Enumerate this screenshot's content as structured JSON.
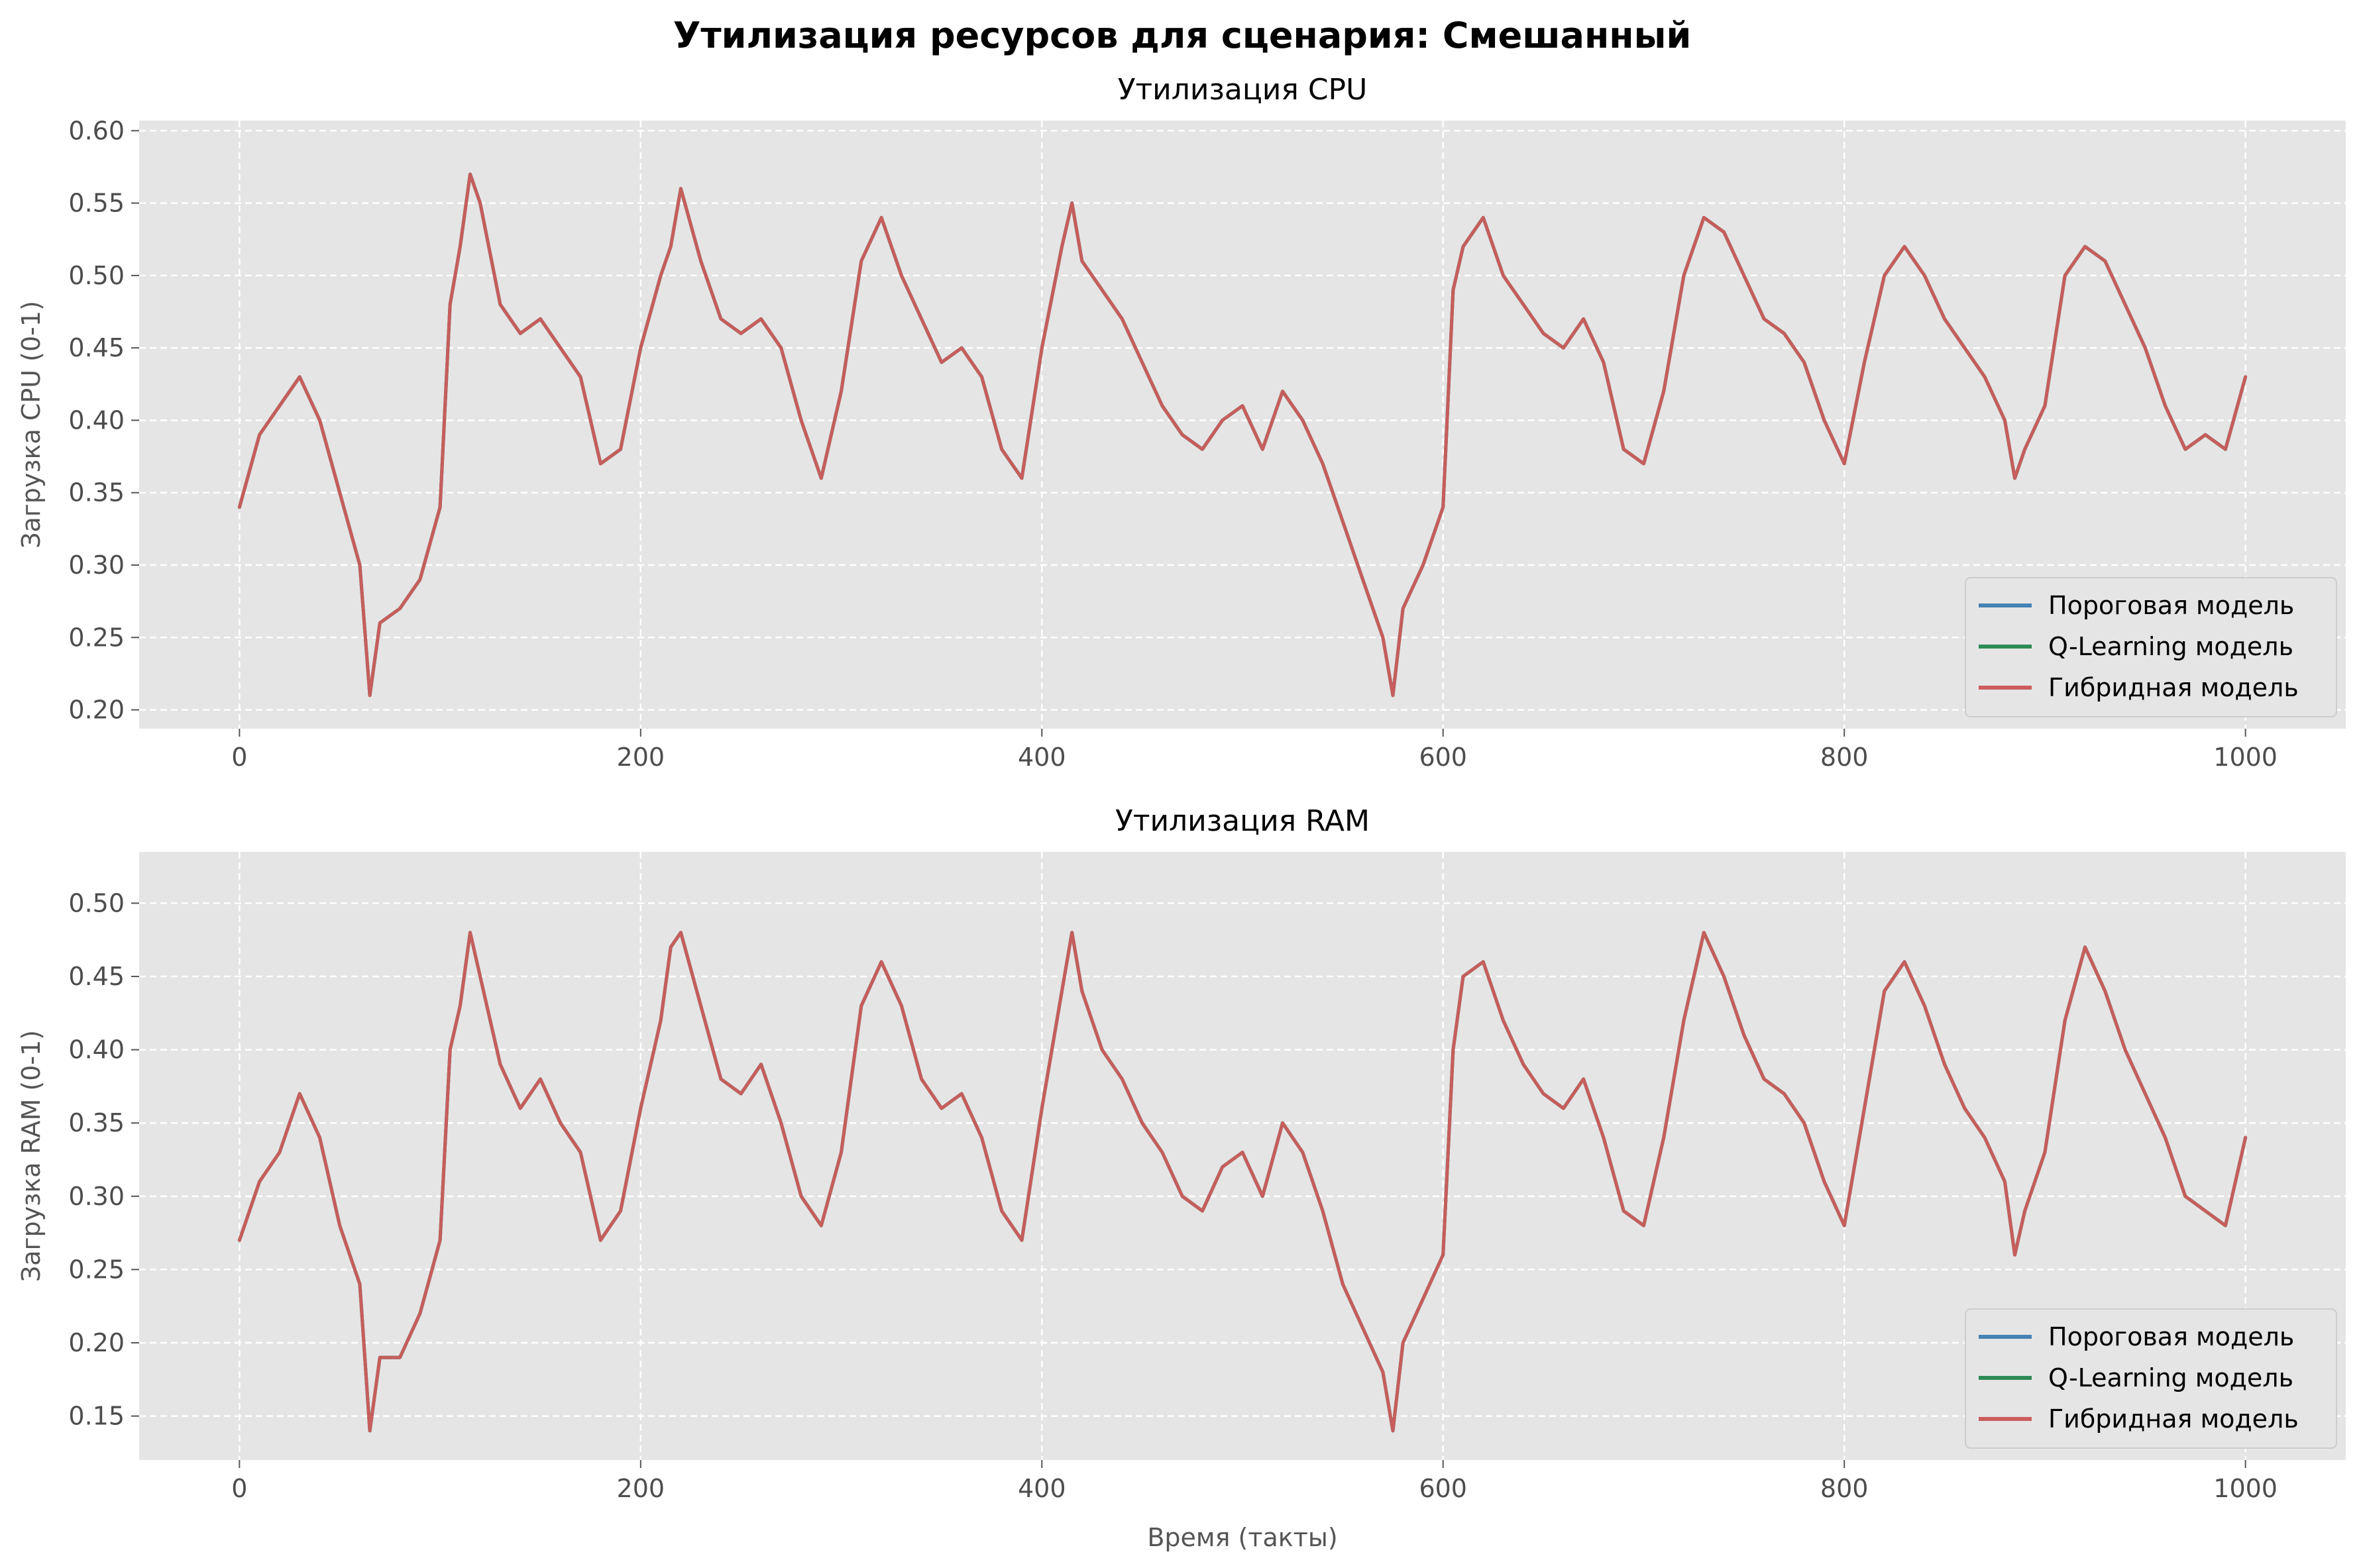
{
  "suptitle": "Утилизация ресурсов для сценария: Смешанный",
  "colors": {
    "background": "#e5e5e5",
    "grid": "#ffffff",
    "threshold": "#4682b4",
    "qlearning": "#2e8b57",
    "hybrid": "#cd5c5c"
  },
  "chart_data": [
    {
      "type": "line",
      "title": "Утилизация CPU",
      "xlabel": "",
      "ylabel": "Загрузка CPU (0-1)",
      "xlim": [
        -50,
        1050
      ],
      "ylim": [
        0.187,
        0.607
      ],
      "xticks": [
        0,
        200,
        400,
        600,
        800,
        1000
      ],
      "xtick_labels": [
        "0",
        "200",
        "400",
        "600",
        "800",
        "1000"
      ],
      "yticks": [
        0.2,
        0.25,
        0.3,
        0.35,
        0.4,
        0.45,
        0.5,
        0.55,
        0.6
      ],
      "ytick_labels": [
        "0.20",
        "0.25",
        "0.30",
        "0.35",
        "0.40",
        "0.45",
        "0.50",
        "0.55",
        "0.60"
      ],
      "grid": true,
      "legend_position": "lower-right",
      "legend": [
        "Пороговая модель",
        "Q-Learning модель",
        "Гибридная модель"
      ],
      "series_colors": [
        "#4682b4",
        "#2e8b57",
        "#cd5c5c"
      ],
      "x": [
        0,
        10,
        20,
        30,
        40,
        50,
        60,
        65,
        70,
        80,
        90,
        100,
        105,
        110,
        115,
        120,
        130,
        140,
        150,
        160,
        170,
        180,
        190,
        200,
        210,
        215,
        220,
        230,
        240,
        250,
        260,
        270,
        280,
        290,
        300,
        310,
        320,
        330,
        340,
        350,
        360,
        370,
        380,
        390,
        400,
        410,
        415,
        420,
        430,
        440,
        450,
        460,
        470,
        480,
        490,
        500,
        510,
        520,
        530,
        540,
        550,
        560,
        570,
        575,
        580,
        590,
        600,
        605,
        610,
        620,
        630,
        640,
        650,
        660,
        670,
        680,
        690,
        700,
        710,
        720,
        730,
        740,
        750,
        760,
        770,
        780,
        790,
        800,
        810,
        820,
        830,
        840,
        850,
        860,
        870,
        880,
        885,
        890,
        900,
        910,
        920,
        930,
        940,
        950,
        960,
        970,
        980,
        990,
        1000
      ],
      "series": [
        {
          "name": "Пороговая модель",
          "values": [
            0.34,
            0.39,
            0.41,
            0.43,
            0.4,
            0.35,
            0.3,
            0.21,
            0.26,
            0.27,
            0.29,
            0.34,
            0.48,
            0.52,
            0.57,
            0.55,
            0.48,
            0.46,
            0.47,
            0.45,
            0.43,
            0.37,
            0.38,
            0.45,
            0.5,
            0.52,
            0.56,
            0.51,
            0.47,
            0.46,
            0.47,
            0.45,
            0.4,
            0.36,
            0.42,
            0.51,
            0.54,
            0.5,
            0.47,
            0.44,
            0.45,
            0.43,
            0.38,
            0.36,
            0.45,
            0.52,
            0.55,
            0.51,
            0.49,
            0.47,
            0.44,
            0.41,
            0.39,
            0.38,
            0.4,
            0.41,
            0.38,
            0.42,
            0.4,
            0.37,
            0.33,
            0.29,
            0.25,
            0.21,
            0.27,
            0.3,
            0.34,
            0.49,
            0.52,
            0.54,
            0.5,
            0.48,
            0.46,
            0.45,
            0.47,
            0.44,
            0.38,
            0.37,
            0.42,
            0.5,
            0.54,
            0.53,
            0.5,
            0.47,
            0.46,
            0.44,
            0.4,
            0.37,
            0.44,
            0.5,
            0.52,
            0.5,
            0.47,
            0.45,
            0.43,
            0.4,
            0.36,
            0.38,
            0.41,
            0.5,
            0.52,
            0.51,
            0.48,
            0.45,
            0.41,
            0.38,
            0.39,
            0.38,
            0.43
          ]
        },
        {
          "name": "Q-Learning модель",
          "values": [
            0.34,
            0.39,
            0.41,
            0.43,
            0.4,
            0.35,
            0.3,
            0.21,
            0.26,
            0.27,
            0.29,
            0.34,
            0.48,
            0.52,
            0.57,
            0.55,
            0.48,
            0.46,
            0.47,
            0.45,
            0.43,
            0.37,
            0.38,
            0.45,
            0.5,
            0.52,
            0.56,
            0.51,
            0.47,
            0.46,
            0.47,
            0.45,
            0.4,
            0.36,
            0.42,
            0.51,
            0.54,
            0.5,
            0.47,
            0.44,
            0.45,
            0.43,
            0.38,
            0.36,
            0.45,
            0.52,
            0.55,
            0.51,
            0.49,
            0.47,
            0.44,
            0.41,
            0.39,
            0.38,
            0.4,
            0.41,
            0.38,
            0.42,
            0.4,
            0.37,
            0.33,
            0.29,
            0.25,
            0.21,
            0.27,
            0.3,
            0.34,
            0.49,
            0.52,
            0.54,
            0.5,
            0.48,
            0.46,
            0.45,
            0.47,
            0.44,
            0.38,
            0.37,
            0.42,
            0.5,
            0.54,
            0.53,
            0.5,
            0.47,
            0.46,
            0.44,
            0.4,
            0.37,
            0.44,
            0.5,
            0.52,
            0.5,
            0.47,
            0.45,
            0.43,
            0.4,
            0.36,
            0.38,
            0.41,
            0.5,
            0.52,
            0.51,
            0.48,
            0.45,
            0.41,
            0.38,
            0.39,
            0.38,
            0.43
          ]
        },
        {
          "name": "Гибридная модель",
          "values": [
            0.34,
            0.39,
            0.41,
            0.43,
            0.4,
            0.35,
            0.3,
            0.21,
            0.26,
            0.27,
            0.29,
            0.34,
            0.48,
            0.52,
            0.57,
            0.55,
            0.48,
            0.46,
            0.47,
            0.45,
            0.43,
            0.37,
            0.38,
            0.45,
            0.5,
            0.52,
            0.56,
            0.51,
            0.47,
            0.46,
            0.47,
            0.45,
            0.4,
            0.36,
            0.42,
            0.51,
            0.54,
            0.5,
            0.47,
            0.44,
            0.45,
            0.43,
            0.38,
            0.36,
            0.45,
            0.52,
            0.55,
            0.51,
            0.49,
            0.47,
            0.44,
            0.41,
            0.39,
            0.38,
            0.4,
            0.41,
            0.38,
            0.42,
            0.4,
            0.37,
            0.33,
            0.29,
            0.25,
            0.21,
            0.27,
            0.3,
            0.34,
            0.49,
            0.52,
            0.54,
            0.5,
            0.48,
            0.46,
            0.45,
            0.47,
            0.44,
            0.38,
            0.37,
            0.42,
            0.5,
            0.54,
            0.53,
            0.5,
            0.47,
            0.46,
            0.44,
            0.4,
            0.37,
            0.44,
            0.5,
            0.52,
            0.5,
            0.47,
            0.45,
            0.43,
            0.4,
            0.36,
            0.38,
            0.41,
            0.5,
            0.52,
            0.51,
            0.48,
            0.45,
            0.41,
            0.38,
            0.39,
            0.38,
            0.43
          ]
        }
      ]
    },
    {
      "type": "line",
      "title": "Утилизация RAM",
      "xlabel": "Время (такты)",
      "ylabel": "Загрузка RAM (0-1)",
      "xlim": [
        -50,
        1050
      ],
      "ylim": [
        0.12,
        0.535
      ],
      "xticks": [
        0,
        200,
        400,
        600,
        800,
        1000
      ],
      "xtick_labels": [
        "0",
        "200",
        "400",
        "600",
        "800",
        "1000"
      ],
      "yticks": [
        0.15,
        0.2,
        0.25,
        0.3,
        0.35,
        0.4,
        0.45,
        0.5
      ],
      "ytick_labels": [
        "0.15",
        "0.20",
        "0.25",
        "0.30",
        "0.35",
        "0.40",
        "0.45",
        "0.50"
      ],
      "grid": true,
      "legend_position": "lower-right",
      "legend": [
        "Пороговая модель",
        "Q-Learning модель",
        "Гибридная модель"
      ],
      "series_colors": [
        "#4682b4",
        "#2e8b57",
        "#cd5c5c"
      ],
      "x": [
        0,
        10,
        20,
        30,
        40,
        50,
        60,
        65,
        70,
        80,
        90,
        100,
        105,
        110,
        115,
        120,
        130,
        140,
        150,
        160,
        170,
        180,
        190,
        200,
        210,
        215,
        220,
        230,
        240,
        250,
        260,
        270,
        280,
        290,
        300,
        310,
        320,
        330,
        340,
        350,
        360,
        370,
        380,
        390,
        400,
        410,
        415,
        420,
        430,
        440,
        450,
        460,
        470,
        480,
        490,
        500,
        510,
        520,
        530,
        540,
        550,
        560,
        570,
        575,
        580,
        590,
        600,
        605,
        610,
        620,
        630,
        640,
        650,
        660,
        670,
        680,
        690,
        700,
        710,
        720,
        730,
        740,
        750,
        760,
        770,
        780,
        790,
        800,
        810,
        820,
        830,
        840,
        850,
        860,
        870,
        880,
        885,
        890,
        900,
        910,
        920,
        930,
        940,
        950,
        960,
        970,
        980,
        990,
        1000
      ],
      "series": [
        {
          "name": "Пороговая модель",
          "values": [
            0.27,
            0.31,
            0.33,
            0.37,
            0.34,
            0.28,
            0.24,
            0.14,
            0.19,
            0.19,
            0.22,
            0.27,
            0.4,
            0.43,
            0.48,
            0.45,
            0.39,
            0.36,
            0.38,
            0.35,
            0.33,
            0.27,
            0.29,
            0.36,
            0.42,
            0.47,
            0.48,
            0.43,
            0.38,
            0.37,
            0.39,
            0.35,
            0.3,
            0.28,
            0.33,
            0.43,
            0.46,
            0.43,
            0.38,
            0.36,
            0.37,
            0.34,
            0.29,
            0.27,
            0.36,
            0.44,
            0.48,
            0.44,
            0.4,
            0.38,
            0.35,
            0.33,
            0.3,
            0.29,
            0.32,
            0.33,
            0.3,
            0.35,
            0.33,
            0.29,
            0.24,
            0.21,
            0.18,
            0.14,
            0.2,
            0.23,
            0.26,
            0.4,
            0.45,
            0.46,
            0.42,
            0.39,
            0.37,
            0.36,
            0.38,
            0.34,
            0.29,
            0.28,
            0.34,
            0.42,
            0.48,
            0.45,
            0.41,
            0.38,
            0.37,
            0.35,
            0.31,
            0.28,
            0.36,
            0.44,
            0.46,
            0.43,
            0.39,
            0.36,
            0.34,
            0.31,
            0.26,
            0.29,
            0.33,
            0.42,
            0.47,
            0.44,
            0.4,
            0.37,
            0.34,
            0.3,
            0.29,
            0.28,
            0.34
          ]
        },
        {
          "name": "Q-Learning модель",
          "values": [
            0.27,
            0.31,
            0.33,
            0.37,
            0.34,
            0.28,
            0.24,
            0.14,
            0.19,
            0.19,
            0.22,
            0.27,
            0.4,
            0.43,
            0.48,
            0.45,
            0.39,
            0.36,
            0.38,
            0.35,
            0.33,
            0.27,
            0.29,
            0.36,
            0.42,
            0.47,
            0.48,
            0.43,
            0.38,
            0.37,
            0.39,
            0.35,
            0.3,
            0.28,
            0.33,
            0.43,
            0.46,
            0.43,
            0.38,
            0.36,
            0.37,
            0.34,
            0.29,
            0.27,
            0.36,
            0.44,
            0.48,
            0.44,
            0.4,
            0.38,
            0.35,
            0.33,
            0.3,
            0.29,
            0.32,
            0.33,
            0.3,
            0.35,
            0.33,
            0.29,
            0.24,
            0.21,
            0.18,
            0.14,
            0.2,
            0.23,
            0.26,
            0.4,
            0.45,
            0.46,
            0.42,
            0.39,
            0.37,
            0.36,
            0.38,
            0.34,
            0.29,
            0.28,
            0.34,
            0.42,
            0.48,
            0.45,
            0.41,
            0.38,
            0.37,
            0.35,
            0.31,
            0.28,
            0.36,
            0.44,
            0.46,
            0.43,
            0.39,
            0.36,
            0.34,
            0.31,
            0.26,
            0.29,
            0.33,
            0.42,
            0.47,
            0.44,
            0.4,
            0.37,
            0.34,
            0.3,
            0.29,
            0.28,
            0.34
          ]
        },
        {
          "name": "Гибридная модель",
          "values": [
            0.27,
            0.31,
            0.33,
            0.37,
            0.34,
            0.28,
            0.24,
            0.14,
            0.19,
            0.19,
            0.22,
            0.27,
            0.4,
            0.43,
            0.48,
            0.45,
            0.39,
            0.36,
            0.38,
            0.35,
            0.33,
            0.27,
            0.29,
            0.36,
            0.42,
            0.47,
            0.48,
            0.43,
            0.38,
            0.37,
            0.39,
            0.35,
            0.3,
            0.28,
            0.33,
            0.43,
            0.46,
            0.43,
            0.38,
            0.36,
            0.37,
            0.34,
            0.29,
            0.27,
            0.36,
            0.44,
            0.48,
            0.44,
            0.4,
            0.38,
            0.35,
            0.33,
            0.3,
            0.29,
            0.32,
            0.33,
            0.3,
            0.35,
            0.33,
            0.29,
            0.24,
            0.21,
            0.18,
            0.14,
            0.2,
            0.23,
            0.26,
            0.4,
            0.45,
            0.46,
            0.42,
            0.39,
            0.37,
            0.36,
            0.38,
            0.34,
            0.29,
            0.28,
            0.34,
            0.42,
            0.48,
            0.45,
            0.41,
            0.38,
            0.37,
            0.35,
            0.31,
            0.28,
            0.36,
            0.44,
            0.46,
            0.43,
            0.39,
            0.36,
            0.34,
            0.31,
            0.26,
            0.29,
            0.33,
            0.42,
            0.47,
            0.44,
            0.4,
            0.37,
            0.34,
            0.3,
            0.29,
            0.28,
            0.34
          ]
        }
      ]
    }
  ]
}
